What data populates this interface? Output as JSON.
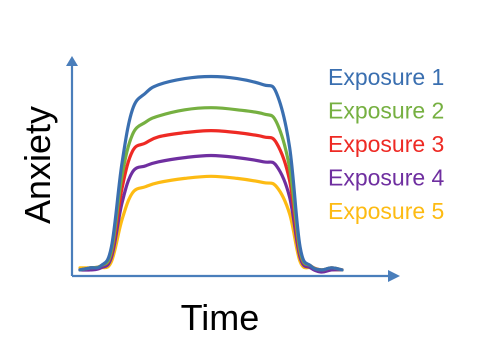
{
  "chart_data": {
    "type": "line",
    "xlabel": "Time",
    "ylabel": "Anxiety",
    "legend_position": "right",
    "x": [
      0,
      0.04,
      0.08,
      0.12,
      0.16,
      0.2,
      0.25,
      0.3,
      0.4,
      0.5,
      0.6,
      0.7,
      0.75,
      0.8,
      0.84,
      0.88,
      0.92,
      0.96,
      1.0
    ],
    "series": [
      {
        "name": "Exposure 1",
        "color": "#3a6fb0",
        "values": [
          0.01,
          0.02,
          0.03,
          0.12,
          0.52,
          0.78,
          0.86,
          0.9,
          0.93,
          0.94,
          0.93,
          0.9,
          0.86,
          0.6,
          0.12,
          0.03,
          0.01,
          0.02,
          0.01
        ]
      },
      {
        "name": "Exposure 2",
        "color": "#76b041",
        "values": [
          0.01,
          0.02,
          0.03,
          0.1,
          0.46,
          0.66,
          0.72,
          0.75,
          0.78,
          0.79,
          0.78,
          0.76,
          0.72,
          0.5,
          0.1,
          0.03,
          0.01,
          0.02,
          0.01
        ]
      },
      {
        "name": "Exposure 3",
        "color": "#ee2a24",
        "values": [
          0.01,
          0.02,
          0.03,
          0.09,
          0.4,
          0.58,
          0.62,
          0.65,
          0.67,
          0.68,
          0.67,
          0.65,
          0.62,
          0.44,
          0.09,
          0.03,
          0.01,
          0.02,
          0.01
        ]
      },
      {
        "name": "Exposure 4",
        "color": "#6f2fa0",
        "values": [
          0.01,
          0.01,
          0.02,
          0.07,
          0.33,
          0.48,
          0.51,
          0.53,
          0.55,
          0.56,
          0.55,
          0.53,
          0.51,
          0.36,
          0.07,
          0.02,
          0.0,
          0.01,
          0.01
        ]
      },
      {
        "name": "Exposure 5",
        "color": "#fdbb13",
        "values": [
          0.02,
          0.02,
          0.02,
          0.05,
          0.25,
          0.38,
          0.41,
          0.43,
          0.45,
          0.46,
          0.45,
          0.43,
          0.41,
          0.28,
          0.05,
          0.02,
          0.01,
          0.01,
          0.01
        ]
      }
    ]
  }
}
